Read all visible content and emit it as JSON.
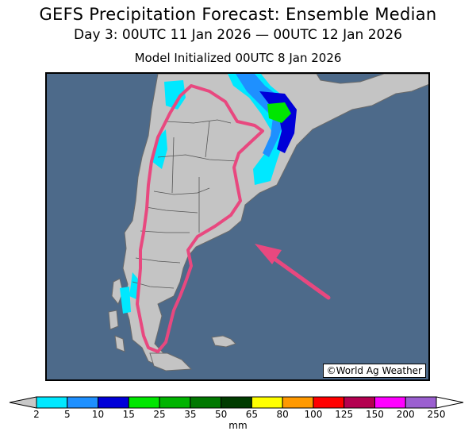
{
  "header": {
    "title": "GEFS Precipitation Forecast: Ensemble Median",
    "subtitle": "Day 3: 00UTC 11 Jan 2026 — 00UTC 12 Jan 2026",
    "initialized": "Model Initialized 00UTC 8 Jan 2026"
  },
  "map": {
    "credit": "©World Ag Weather",
    "colors": {
      "ocean": "#4d6a8a",
      "land": "#c4c4c4",
      "border": "#404040",
      "highlight": "#e8487f"
    }
  },
  "legend": {
    "unit": "mm",
    "ticks": [
      "2",
      "5",
      "10",
      "15",
      "25",
      "35",
      "50",
      "65",
      "80",
      "100",
      "125",
      "150",
      "200",
      "250"
    ],
    "colors": [
      "#00e8ff",
      "#1e90ff",
      "#0000d8",
      "#00e600",
      "#00b400",
      "#007800",
      "#003c00",
      "#ffff00",
      "#ff9900",
      "#ff0000",
      "#b40050",
      "#ff00ff",
      "#9b5fd0"
    ],
    "end_colors": [
      "#c8c8c8",
      "#ffffff"
    ]
  }
}
